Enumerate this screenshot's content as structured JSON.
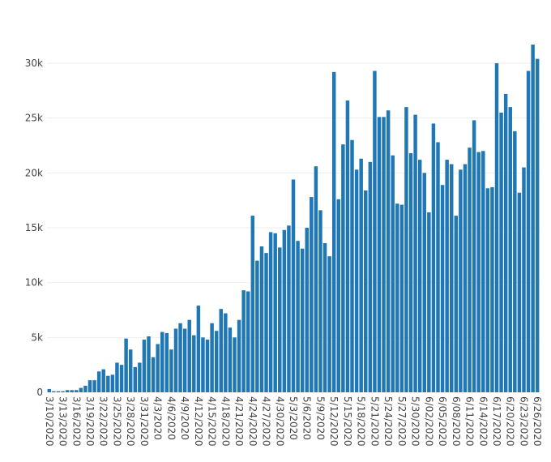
{
  "chart_data": {
    "type": "bar",
    "categories": [
      "3/10/2020",
      null,
      null,
      "3/13/2020",
      null,
      null,
      "3/16/2020",
      null,
      null,
      "3/19/2020",
      null,
      null,
      "3/22/2020",
      null,
      null,
      "3/25/2020",
      null,
      null,
      "3/28/2020",
      null,
      null,
      "3/31/2020",
      null,
      null,
      "4/3/2020",
      null,
      null,
      "4/6/2020",
      null,
      null,
      "4/9/2020",
      null,
      null,
      "4/12/2020",
      null,
      null,
      "4/15/2020",
      null,
      null,
      "4/18/2020",
      null,
      null,
      "4/21/2020",
      null,
      null,
      "4/24/2020",
      null,
      null,
      "4/27/2020",
      null,
      null,
      "4/30/2020",
      null,
      null,
      "5/3/2020",
      null,
      null,
      "5/6/2020",
      null,
      null,
      "5/9/2020",
      null,
      null,
      "5/12/2020",
      null,
      null,
      "5/15/2020",
      null,
      null,
      "5/18/2020",
      null,
      null,
      "5/21/2020",
      null,
      null,
      "5/24/2020",
      null,
      null,
      "5/27/2020",
      null,
      null,
      "5/30/2020",
      null,
      null,
      "6/02/2020",
      null,
      null,
      "6/05/2020",
      null,
      null,
      "6/08/2020",
      null,
      null,
      "6/11/2020",
      null,
      null,
      "6/14/2020",
      null,
      null,
      "6/17/2020",
      null,
      null,
      "6/20/2020",
      null,
      null,
      "6/23/2020",
      null,
      null,
      "6/26/2020"
    ],
    "values": [
      300,
      100,
      100,
      100,
      200,
      200,
      200,
      400,
      600,
      1100,
      1100,
      1900,
      2100,
      1500,
      1600,
      2700,
      2500,
      4900,
      3900,
      2300,
      2700,
      4800,
      5100,
      3200,
      4400,
      5500,
      5400,
      3900,
      5800,
      6300,
      5800,
      6600,
      5200,
      7900,
      5000,
      4800,
      6300,
      5600,
      7600,
      7200,
      5900,
      5000,
      6600,
      9300,
      9200,
      16100,
      12000,
      13300,
      12700,
      14600,
      14500,
      13200,
      14800,
      15200,
      19400,
      13800,
      13100,
      15000,
      17800,
      20600,
      16600,
      13600,
      12400,
      29200,
      17600,
      22600,
      26600,
      23000,
      20300,
      21300,
      18400,
      21000,
      29300,
      25100,
      25100,
      25700,
      21600,
      17200,
      17100,
      26000,
      21800,
      25300,
      21200,
      20000,
      16400,
      24500,
      22800,
      18900,
      21200,
      20800,
      16100,
      20300,
      20800,
      22300,
      24800,
      21900,
      22000,
      18600,
      18700,
      30000,
      25500,
      27200,
      26000,
      23800,
      18200,
      20500,
      29300,
      31700,
      30400
    ],
    "color": "#1f77b4",
    "ylim": [
      0,
      33400
    ],
    "yticks": [
      0,
      {
        "value": 5000,
        "label": "5k"
      },
      {
        "value": 10000,
        "label": "10k"
      },
      {
        "value": 15000,
        "label": "15k"
      },
      {
        "value": 20000,
        "label": "20k"
      },
      {
        "value": 25000,
        "label": "25k"
      },
      {
        "value": 30000,
        "label": "30k"
      }
    ],
    "grid": true
  }
}
